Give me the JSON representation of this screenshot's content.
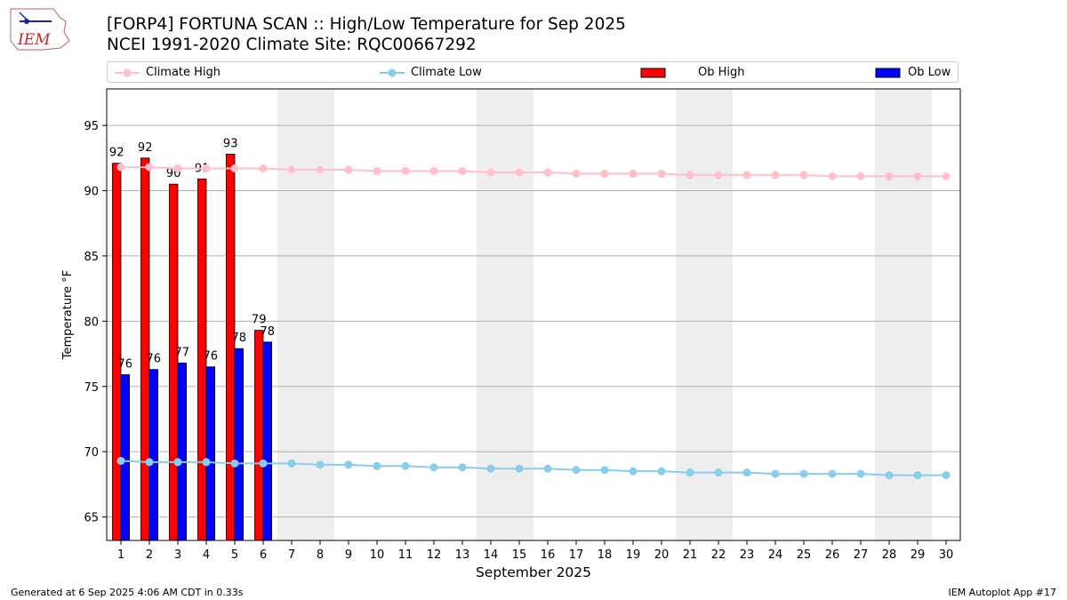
{
  "header": {
    "title_line1": "[FORP4] FORTUNA SCAN :: High/Low Temperature for Sep 2025",
    "title_line2": "NCEI 1991-2020 Climate Site: RQC00667292",
    "logo_text": "IEM"
  },
  "legend": {
    "items": [
      {
        "label": "Climate High",
        "color": "#ffc0cb",
        "kind": "line"
      },
      {
        "label": "Climate Low",
        "color": "#87ceeb",
        "kind": "line"
      },
      {
        "label": "Ob High",
        "color": "#ff0000",
        "kind": "bar"
      },
      {
        "label": "Ob Low",
        "color": "#0000ff",
        "kind": "bar"
      }
    ],
    "placement": "top"
  },
  "chart_data": {
    "type": "bar",
    "title": "[FORP4] FORTUNA SCAN :: High/Low Temperature for Sep 2025",
    "subtitle": "NCEI 1991-2020 Climate Site: RQC00667292",
    "xlabel": "September 2025",
    "ylabel": "Temperature °F",
    "x": [
      1,
      2,
      3,
      4,
      5,
      6,
      7,
      8,
      9,
      10,
      11,
      12,
      13,
      14,
      15,
      16,
      17,
      18,
      19,
      20,
      21,
      22,
      23,
      24,
      25,
      26,
      27,
      28,
      29,
      30
    ],
    "xlim": [
      0.5,
      30.5
    ],
    "ylim": [
      63.2,
      97.8
    ],
    "yticks": [
      65,
      70,
      75,
      80,
      85,
      90,
      95
    ],
    "grid": "horizontal",
    "weekend_shading": [
      [
        7,
        7.5,
        5.5
      ],
      [
        14,
        14.5,
        12.5
      ],
      [
        21,
        21.5,
        19.5
      ],
      [
        28,
        28.5,
        26.5
      ]
    ],
    "weekend_days": [
      6.5,
      13.5,
      20.5,
      27.5
    ],
    "series": [
      {
        "name": "Ob High",
        "type": "bar",
        "color": "#ff0000",
        "x": [
          1,
          2,
          3,
          4,
          5,
          6
        ],
        "values": [
          92.1,
          92.5,
          90.5,
          90.9,
          92.8,
          79.3
        ],
        "labels": [
          "92",
          "92",
          "90",
          "91",
          "93",
          "79"
        ]
      },
      {
        "name": "Ob Low",
        "type": "bar",
        "color": "#0000ff",
        "x": [
          1,
          2,
          3,
          4,
          5,
          6
        ],
        "values": [
          75.9,
          76.3,
          76.8,
          76.5,
          77.9,
          78.4
        ],
        "labels": [
          "76",
          "76",
          "77",
          "76",
          "78",
          "78"
        ]
      },
      {
        "name": "Climate High",
        "type": "line",
        "color": "#ffc0cb",
        "values": [
          91.8,
          91.8,
          91.7,
          91.7,
          91.7,
          91.7,
          91.6,
          91.6,
          91.6,
          91.5,
          91.5,
          91.5,
          91.5,
          91.4,
          91.4,
          91.4,
          91.3,
          91.3,
          91.3,
          91.3,
          91.2,
          91.2,
          91.2,
          91.2,
          91.2,
          91.1,
          91.1,
          91.1,
          91.1,
          91.1
        ]
      },
      {
        "name": "Climate Low",
        "type": "line",
        "color": "#87ceeb",
        "values": [
          69.3,
          69.2,
          69.2,
          69.2,
          69.1,
          69.1,
          69.1,
          69.0,
          69.0,
          68.9,
          68.9,
          68.8,
          68.8,
          68.7,
          68.7,
          68.7,
          68.6,
          68.6,
          68.5,
          68.5,
          68.4,
          68.4,
          68.4,
          68.3,
          68.3,
          68.3,
          68.3,
          68.2,
          68.2,
          68.2
        ]
      }
    ]
  },
  "footer": {
    "left": "Generated at 6 Sep 2025 4:06 AM CDT in 0.33s",
    "right": "IEM Autoplot App #17"
  }
}
